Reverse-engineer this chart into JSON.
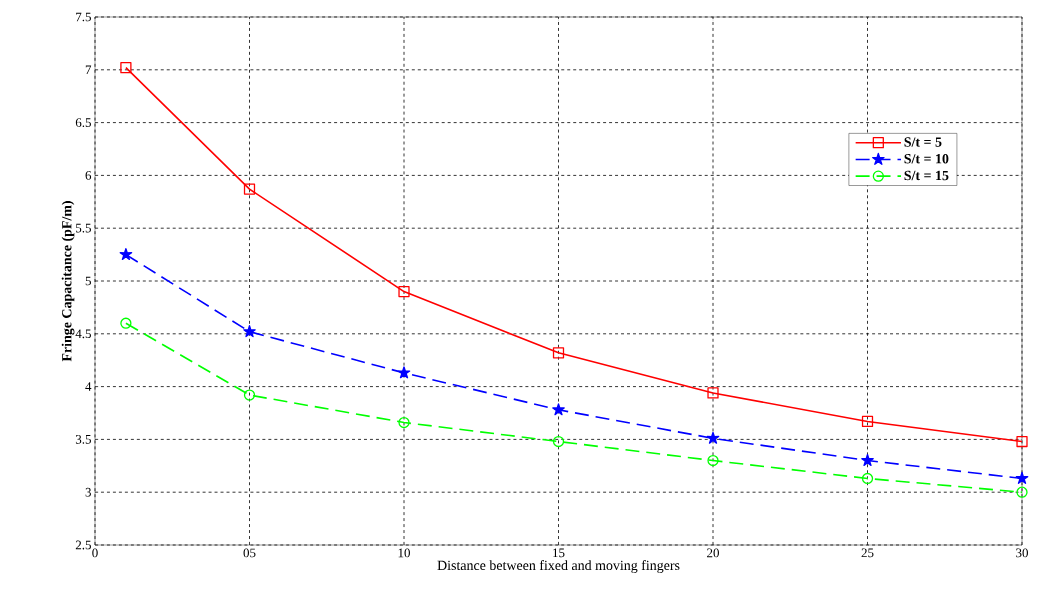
{
  "chart_data": {
    "type": "line",
    "xlabel": "Distance between fixed and moving fingers",
    "ylabel": "Fringe Capacitance (pF/m)",
    "x": [
      1,
      5,
      10,
      15,
      20,
      25,
      30
    ],
    "series": [
      {
        "name": "S/t = 5",
        "color": "#ff0000",
        "marker": "square",
        "line_style": "solid",
        "values": [
          7.02,
          5.87,
          4.9,
          4.32,
          3.94,
          3.67,
          3.48
        ]
      },
      {
        "name": "S/t = 10",
        "color": "#0000ff",
        "marker": "star",
        "line_style": "dashed",
        "values": [
          5.25,
          4.52,
          4.13,
          3.78,
          3.51,
          3.3,
          3.13
        ]
      },
      {
        "name": "S/t = 15",
        "color": "#00ff00",
        "marker": "circle",
        "line_style": "dashed",
        "values": [
          4.6,
          3.92,
          3.66,
          3.48,
          3.3,
          3.13,
          3.0
        ]
      }
    ],
    "xlim": [
      0,
      30
    ],
    "ylim": [
      2.5,
      7.5
    ],
    "xticks": [
      0,
      {
        "value": 5,
        "label": "05"
      },
      10,
      15,
      20,
      25,
      30
    ],
    "yticks": [
      2.5,
      3,
      3.5,
      4,
      4.5,
      5,
      5.5,
      6,
      6.5,
      7,
      7.5
    ],
    "grid": true,
    "legend": "top right"
  }
}
